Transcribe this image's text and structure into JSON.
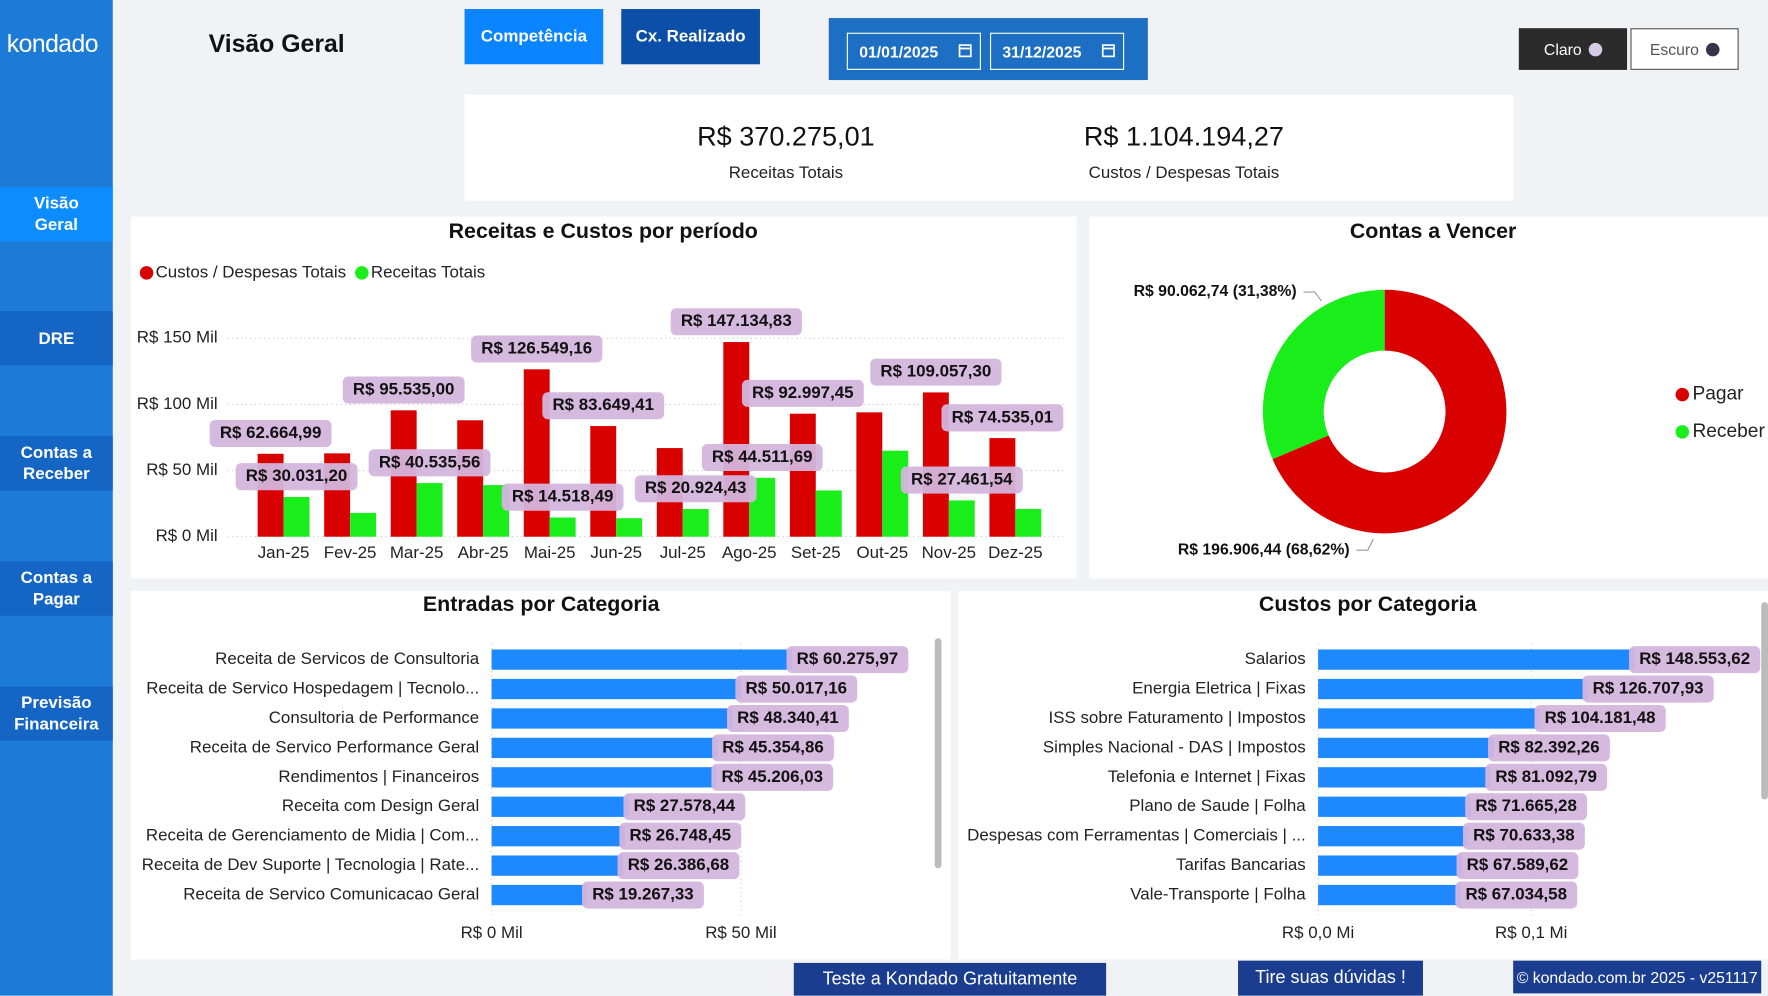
{
  "brand": "kondado",
  "nav": [
    "Visão Geral",
    "DRE",
    "Contas a Receber",
    "Contas a Pagar",
    "Previsão Financeira"
  ],
  "page_title": "Visão Geral",
  "buttons": [
    "Competência",
    "Cx. Realizado"
  ],
  "dates": [
    "01/01/2025",
    "31/12/2025"
  ],
  "theme": [
    "Claro",
    "Escuro"
  ],
  "kpis": [
    {
      "value": "R$ 370.275,01",
      "label": "Receitas Totais"
    },
    {
      "value": "R$ 1.104.194,27",
      "label": "Custos / Despesas Totais"
    }
  ],
  "chart_data": [
    {
      "type": "bar",
      "title": "Receitas e Custos por período",
      "categories": [
        "Jan-25",
        "Fev-25",
        "Mar-25",
        "Abr-25",
        "Mai-25",
        "Jun-25",
        "Jul-25",
        "Ago-25",
        "Set-25",
        "Out-25",
        "Nov-25",
        "Dez-25"
      ],
      "series": [
        {
          "name": "Custos / Despesas Totais",
          "color": "#d90000",
          "values": [
            62664.99,
            63000,
            95535.0,
            88000,
            126549.16,
            83649.41,
            67000,
            147134.83,
            92997.45,
            94000,
            109057.3,
            74535.01
          ],
          "value_labels": [
            "R$ 62.664,99",
            null,
            "R$ 95.535,00",
            null,
            "R$ 126.549,16",
            "R$ 83.649,41",
            null,
            "R$ 147.134,83",
            "R$ 92.997,45",
            null,
            "R$ 109.057,30",
            "R$ 74.535,01"
          ]
        },
        {
          "name": "Receitas Totais",
          "color": "#1aee1a",
          "values": [
            30031.2,
            18000,
            40535.56,
            39000,
            14518.49,
            14000,
            20924.43,
            44511.69,
            35000,
            65000,
            27461.54,
            21000
          ],
          "value_labels": [
            "R$ 30.031,20",
            null,
            "R$ 40.535,56",
            null,
            "R$ 14.518,49",
            null,
            "R$ 20.924,43",
            "R$ 44.511,69",
            null,
            null,
            "R$ 27.461,54",
            null
          ]
        }
      ],
      "ylim": [
        0,
        150000
      ],
      "yticks": [
        {
          "value": 0,
          "label": "R$ 0 Mil"
        },
        {
          "value": 50000,
          "label": "R$ 50 Mil"
        },
        {
          "value": 100000,
          "label": "R$ 100 Mil"
        },
        {
          "value": 150000,
          "label": "R$ 150 Mil"
        }
      ],
      "grid": true,
      "legend": "top-left"
    },
    {
      "type": "donut",
      "title": "Contas a Vencer",
      "categories": [
        "Pagar",
        "Receber"
      ],
      "values": [
        196906.44,
        90062.74
      ],
      "value_labels": [
        "R$ 196.906,44 (68,62%)",
        "R$ 90.062,74 (31,38%)"
      ],
      "colors": [
        "#d90000",
        "#1aee1a"
      ],
      "legend": "right"
    },
    {
      "type": "barh",
      "title": "Entradas por Categoria",
      "categories": [
        "Receita de Servicos de Consultoria",
        "Receita de Servico Hospedagem | Tecnolo...",
        "Consultoria de Performance",
        "Receita de Servico Performance Geral",
        "Rendimentos | Financeiros",
        "Receita com Design Geral",
        "Receita de Gerenciamento de Midia | Com...",
        "Receita de Dev Suporte | Tecnologia | Rate...",
        "Receita de Servico Comunicacao Geral"
      ],
      "values": [
        60275.97,
        50017.16,
        48340.41,
        45354.86,
        45206.03,
        27578.44,
        26748.45,
        26386.68,
        19267.33
      ],
      "value_labels": [
        "R$ 60.275,97",
        "R$ 50.017,16",
        "R$ 48.340,41",
        "R$ 45.354,86",
        "R$ 45.206,03",
        "R$ 27.578,44",
        "R$ 26.748,45",
        "R$ 26.386,68",
        "R$ 19.267,33"
      ],
      "color": "#1e88ff",
      "xlim": [
        0,
        90000
      ],
      "xticks": [
        {
          "value": 0,
          "label": "R$ 0 Mil"
        },
        {
          "value": 50000,
          "label": "R$ 50 Mil"
        }
      ],
      "grid": true
    },
    {
      "type": "barh",
      "title": "Custos por Categoria",
      "categories": [
        "Salarios",
        "Energia Eletrica | Fixas",
        "ISS sobre Faturamento | Impostos",
        "Simples Nacional - DAS | Impostos",
        "Telefonia e Internet | Fixas",
        "Plano de Saude | Folha",
        "Despesas com Ferramentas | Comerciais | ...",
        "Tarifas Bancarias",
        "Vale-Transporte | Folha"
      ],
      "values": [
        148553.62,
        126707.93,
        104181.48,
        82392.26,
        81092.79,
        71665.28,
        70633.38,
        67589.62,
        67034.58
      ],
      "value_labels": [
        "R$ 148.553,62",
        "R$ 126.707,93",
        "R$ 104.181,48",
        "R$ 82.392,26",
        "R$ 81.092,79",
        "R$ 71.665,28",
        "R$ 70.633,38",
        "R$ 67.589,62",
        "R$ 67.034,58"
      ],
      "color": "#1e88ff",
      "xlim": [
        0,
        200000
      ],
      "xticks": [
        {
          "value": 0,
          "label": "R$ 0,0 Mi"
        },
        {
          "value": 100000,
          "label": "R$ 0,1 Mi"
        }
      ],
      "grid": true
    }
  ],
  "footer": [
    "Teste a Kondado Gratuitamente",
    "Tire suas dúvidas !",
    "© kondado.com.br 2025 - v251117"
  ]
}
